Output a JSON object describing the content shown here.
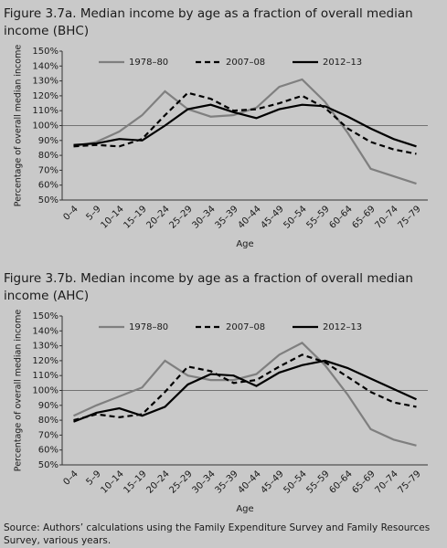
{
  "charts": [
    {
      "type": "line",
      "title": "Figure 3.7a. Median income by age as a fraction of overall median income (BHC)",
      "x_label": "Age",
      "y_label": "Percentage of overall median income",
      "categories": [
        "0–4",
        "5–9",
        "10–14",
        "15–19",
        "20–24",
        "25–29",
        "30–34",
        "35–39",
        "40–44",
        "45–49",
        "50–54",
        "55–59",
        "60–64",
        "65–69",
        "70–74",
        "75–79"
      ],
      "ylim": [
        50,
        150
      ],
      "yticks": [
        {
          "value": 50,
          "label": "50%"
        },
        {
          "value": 60,
          "label": "60%"
        },
        {
          "value": 70,
          "label": "70%"
        },
        {
          "value": 80,
          "label": "80%"
        },
        {
          "value": 90,
          "label": "90%"
        },
        {
          "value": 100,
          "label": "100%"
        },
        {
          "value": 110,
          "label": "110%"
        },
        {
          "value": 120,
          "label": "120%"
        },
        {
          "value": 130,
          "label": "130%"
        },
        {
          "value": 140,
          "label": "140%"
        },
        {
          "value": 150,
          "label": "150%"
        }
      ],
      "reference_line": 100,
      "series": [
        {
          "name": "1978–80",
          "color": "#7f7f7f",
          "dash": false,
          "values": [
            86,
            89,
            96,
            107,
            123,
            111,
            106,
            107,
            112,
            126,
            131,
            116,
            95,
            71,
            66,
            61
          ]
        },
        {
          "name": "2007–08",
          "color": "#000000",
          "dash": true,
          "values": [
            86,
            87,
            86,
            91,
            107,
            122,
            118,
            110,
            111,
            115,
            120,
            112,
            98,
            89,
            84,
            81
          ]
        },
        {
          "name": "2012–13",
          "color": "#000000",
          "dash": false,
          "values": [
            87,
            88,
            91,
            90,
            100,
            111,
            114,
            109,
            105,
            111,
            114,
            113,
            106,
            98,
            91,
            86
          ]
        }
      ]
    },
    {
      "type": "line",
      "title": "Figure 3.7b. Median income by age as a fraction of overall median income (AHC)",
      "x_label": "Age",
      "y_label": "Percentage of overall median income",
      "categories": [
        "0–4",
        "5–9",
        "10–14",
        "15–19",
        "20–24",
        "25–29",
        "30–34",
        "35–39",
        "40–44",
        "45–49",
        "50–54",
        "55–59",
        "60–64",
        "65–69",
        "70–74",
        "75–79"
      ],
      "ylim": [
        50,
        150
      ],
      "yticks": [
        {
          "value": 50,
          "label": "50%"
        },
        {
          "value": 60,
          "label": "60%"
        },
        {
          "value": 70,
          "label": "70%"
        },
        {
          "value": 80,
          "label": "80%"
        },
        {
          "value": 90,
          "label": "90%"
        },
        {
          "value": 100,
          "label": "100%"
        },
        {
          "value": 110,
          "label": "110%"
        },
        {
          "value": 120,
          "label": "120%"
        },
        {
          "value": 130,
          "label": "130%"
        },
        {
          "value": 140,
          "label": "140%"
        },
        {
          "value": 150,
          "label": "150%"
        }
      ],
      "reference_line": 100,
      "series": [
        {
          "name": "1978–80",
          "color": "#7f7f7f",
          "dash": false,
          "values": [
            83,
            90,
            96,
            102,
            120,
            110,
            107,
            107,
            111,
            124,
            132,
            117,
            97,
            74,
            67,
            63
          ]
        },
        {
          "name": "2007–08",
          "color": "#000000",
          "dash": true,
          "values": [
            80,
            84,
            82,
            84,
            99,
            116,
            113,
            105,
            107,
            116,
            124,
            119,
            109,
            99,
            92,
            89
          ]
        },
        {
          "name": "2012–13",
          "color": "#000000",
          "dash": false,
          "values": [
            79,
            85,
            88,
            83,
            89,
            104,
            111,
            110,
            103,
            112,
            117,
            120,
            115,
            108,
            101,
            94
          ]
        }
      ]
    }
  ],
  "source": "Source: Authors’ calculations using the Family Expenditure Survey and Family Resources Survey, various years."
}
